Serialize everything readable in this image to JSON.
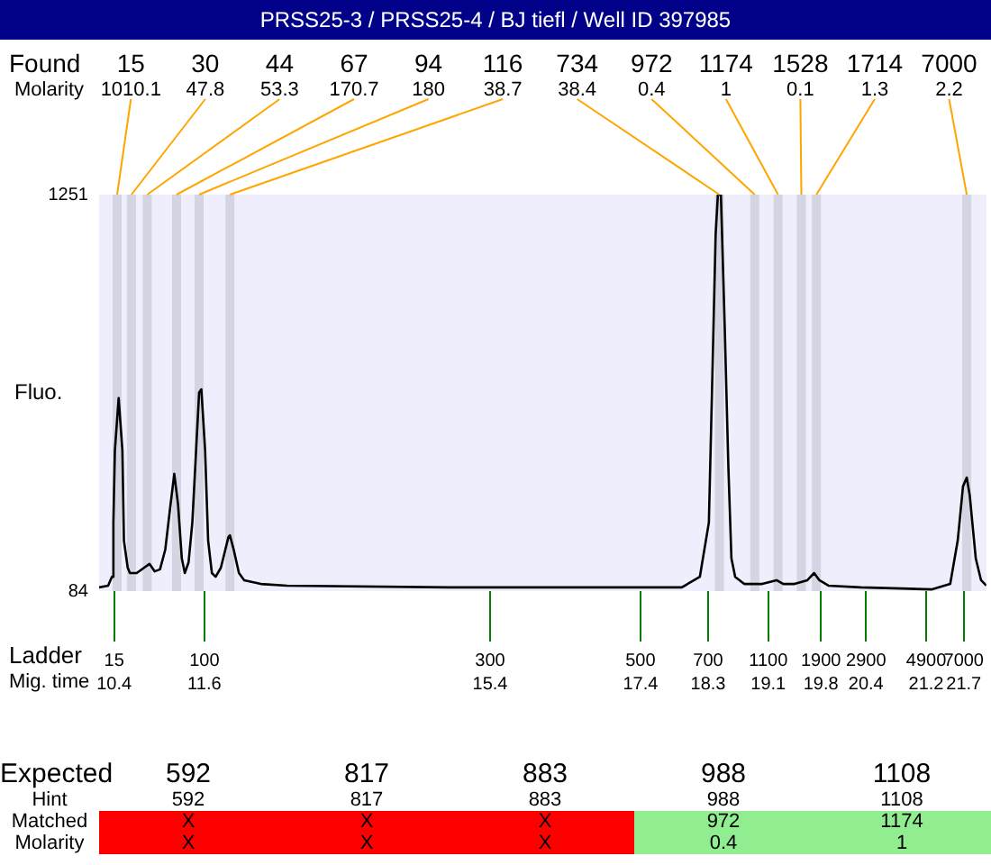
{
  "chart_data": [
    {
      "type": "line",
      "title": "PRSS25-3 / PRSS25-4 / BJ tiefl / Well ID 397985",
      "ylabel": "Fluo.",
      "xlabel": "Mig. time",
      "x": [
        10.2,
        10.32,
        10.37,
        10.39,
        10.41,
        10.46,
        10.51,
        10.53,
        10.58,
        10.61,
        10.7,
        10.8,
        10.87,
        10.94,
        11.01,
        11.08,
        11.15,
        11.2,
        11.25,
        11.3,
        11.34,
        11.39,
        11.44,
        11.49,
        11.53,
        11.56,
        11.61,
        11.65,
        11.7,
        11.75,
        11.82,
        11.92,
        11.94,
        11.99,
        12.06,
        12.13,
        12.35,
        12.7,
        14.85,
        17.95,
        18.19,
        18.31,
        18.35,
        18.4,
        18.43,
        18.47,
        18.52,
        18.57,
        18.61,
        18.66,
        18.78,
        19.02,
        19.21,
        19.3,
        19.45,
        19.62,
        19.71,
        19.78,
        19.9,
        20.33,
        21.28,
        21.52,
        21.62,
        21.69,
        21.74,
        21.78,
        21.86,
        21.93,
        22.0
      ],
      "values": [
        95,
        100,
        126,
        286,
        498,
        652,
        498,
        233,
        153,
        137,
        137,
        153,
        164,
        142,
        148,
        206,
        339,
        429,
        339,
        180,
        137,
        169,
        286,
        498,
        668,
        678,
        498,
        233,
        137,
        126,
        153,
        243,
        248,
        206,
        137,
        116,
        105,
        100,
        95,
        95,
        126,
        286,
        657,
        1134,
        1251,
        1251,
        869,
        445,
        180,
        126,
        105,
        105,
        116,
        105,
        105,
        116,
        137,
        116,
        100,
        95,
        89,
        105,
        233,
        392,
        418,
        365,
        180,
        116,
        100
      ],
      "color": "#000000",
      "xlim": [
        10.2,
        22.0
      ],
      "xticks": [
        10.4,
        11.6,
        15.4,
        17.4,
        18.3,
        19.1,
        19.8,
        20.4,
        21.2,
        21.7
      ],
      "ylim": [
        84,
        1251
      ],
      "yticks": [
        84,
        1251
      ],
      "bands": [
        {
          "axis": "x",
          "from": 10.38,
          "to": 10.5,
          "label": "15",
          "color": "#d4d4e2"
        },
        {
          "axis": "x",
          "from": 10.57,
          "to": 10.69,
          "label": "30",
          "color": "#d4d4e2"
        },
        {
          "axis": "x",
          "from": 10.78,
          "to": 10.9,
          "label": "44",
          "color": "#d4d4e2"
        },
        {
          "axis": "x",
          "from": 11.17,
          "to": 11.29,
          "label": "67",
          "color": "#d4d4e2"
        },
        {
          "axis": "x",
          "from": 11.47,
          "to": 11.59,
          "label": "94",
          "color": "#d4d4e2"
        },
        {
          "axis": "x",
          "from": 11.88,
          "to": 12.0,
          "label": "116",
          "color": "#d4d4e2"
        },
        {
          "axis": "x",
          "from": 18.39,
          "to": 18.51,
          "label": "734",
          "color": "#d4d4e2"
        },
        {
          "axis": "x",
          "from": 18.86,
          "to": 18.98,
          "label": "972",
          "color": "#d4d4e2"
        },
        {
          "axis": "x",
          "from": 19.17,
          "to": 19.29,
          "label": "1174",
          "color": "#d4d4e2"
        },
        {
          "axis": "x",
          "from": 19.48,
          "to": 19.6,
          "label": "1528",
          "color": "#d4d4e2"
        },
        {
          "axis": "x",
          "from": 19.68,
          "to": 19.8,
          "label": "1714",
          "color": "#d4d4e2"
        },
        {
          "axis": "x",
          "from": 21.68,
          "to": 21.8,
          "label": "7000",
          "color": "#d4d4e2"
        }
      ],
      "annotations": [
        "Found",
        "Molarity",
        "Ladder",
        {
          "text": "1010.1",
          "x": 10.44,
          "y": 1251
        },
        {
          "text": "47.8",
          "x": 10.63,
          "y": 1251
        },
        {
          "text": "53.3",
          "x": 10.84,
          "y": 1251
        },
        {
          "text": "170.7",
          "x": 11.23,
          "y": 1251
        },
        {
          "text": "180",
          "x": 11.53,
          "y": 1251
        },
        {
          "text": "38.7",
          "x": 11.94,
          "y": 1251
        },
        {
          "text": "38.4",
          "x": 18.45,
          "y": 1251
        },
        {
          "text": "0.4",
          "x": 18.92,
          "y": 1251
        },
        {
          "text": "1",
          "x": 19.23,
          "y": 1251
        },
        {
          "text": "0.1",
          "x": 19.54,
          "y": 1251
        },
        {
          "text": "1.3",
          "x": 19.74,
          "y": 1251
        },
        {
          "text": "2.2",
          "x": 21.74,
          "y": 1251
        },
        "15",
        "100",
        "300",
        "500",
        "700",
        "1100",
        "1900",
        "2900",
        "4900",
        "7000"
      ],
      "legend": false,
      "grid": false
    },
    {
      "type": "other",
      "categories": [
        "592",
        "817",
        "883",
        "988",
        "1108"
      ],
      "y_categories": [
        "Expected",
        "Hint",
        "Matched",
        "Molarity"
      ],
      "cell_labels": [
        [
          "592",
          "817",
          "883",
          "988",
          "1108"
        ],
        [
          "X",
          "X",
          "X",
          "972",
          "1174"
        ],
        [
          "X",
          "X",
          "X",
          "0.4",
          "1"
        ]
      ],
      "colors": [
        "#ff0000",
        "#ff0000",
        "#ff0000",
        "#90ee90",
        "#90ee90"
      ]
    }
  ]
}
